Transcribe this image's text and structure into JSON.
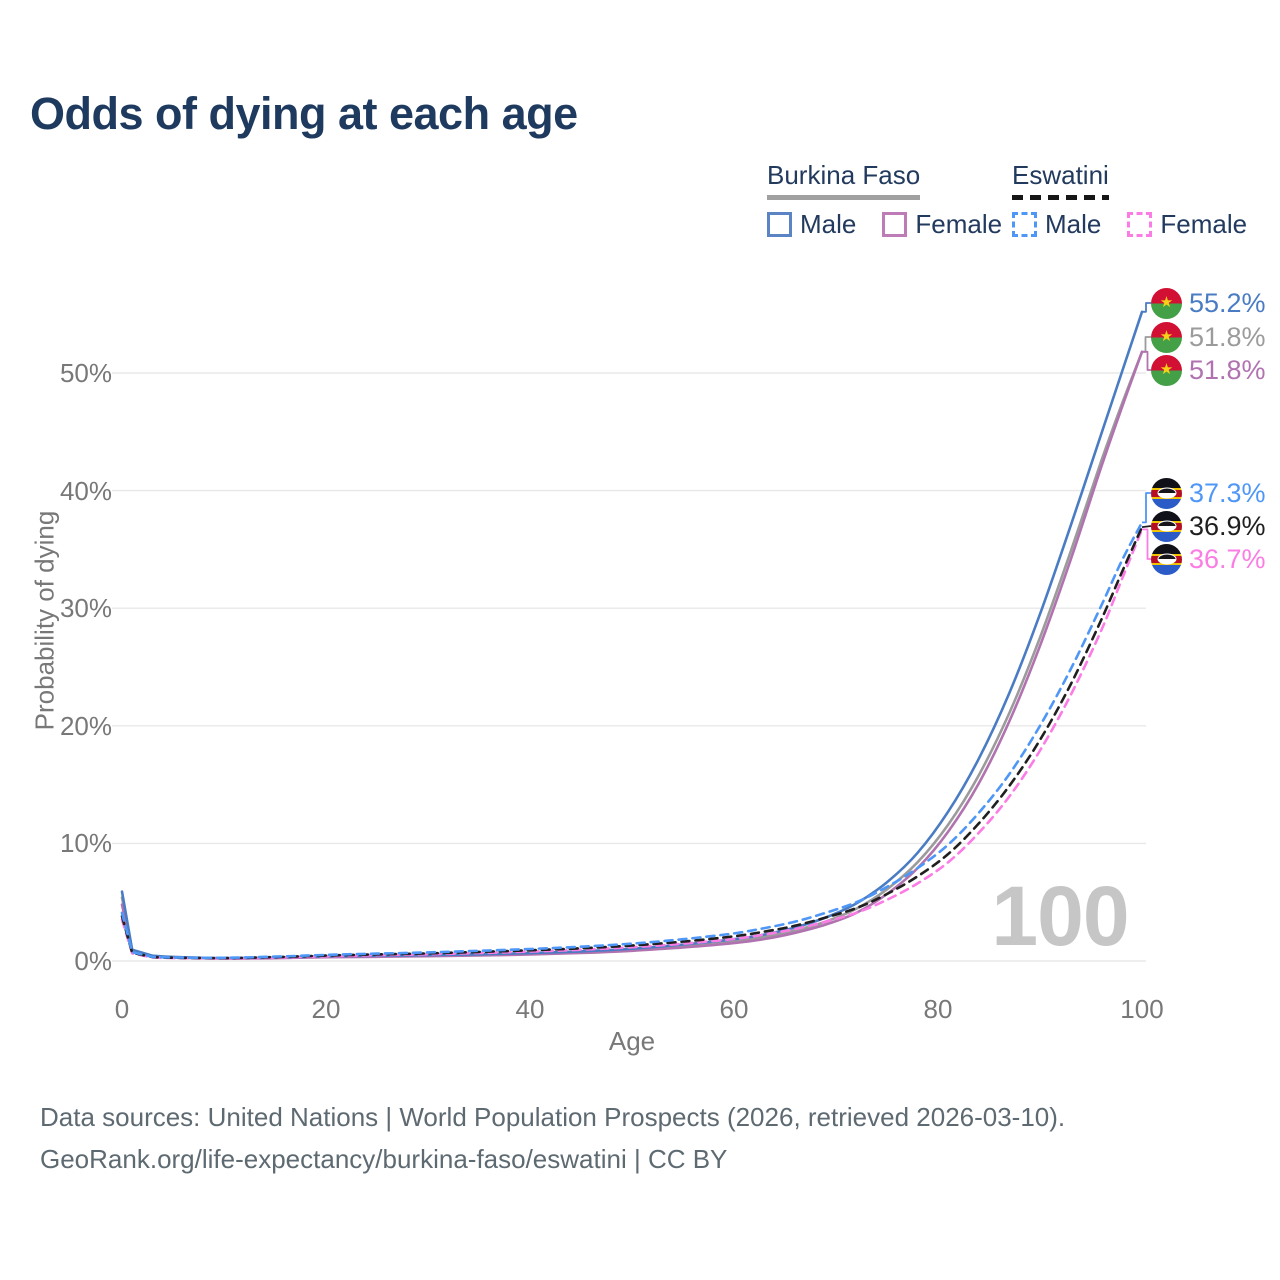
{
  "title": "Odds of dying at each age",
  "legend": {
    "groups": [
      {
        "name": "Burkina Faso",
        "line_style": "solid",
        "underline_color": "#a0a0a0",
        "items": [
          {
            "label": "Male",
            "color": "#5b84c4"
          },
          {
            "label": "Female",
            "color": "#bd7cb5"
          }
        ]
      },
      {
        "name": "Eswatini",
        "line_style": "dashed",
        "underline_color": "#161616",
        "items": [
          {
            "label": "Male",
            "color": "#4f97f7"
          },
          {
            "label": "Female",
            "color": "#fb7ce4"
          }
        ]
      }
    ]
  },
  "chart_data": {
    "type": "line",
    "title": "Odds of dying at each age",
    "xlabel": "Age",
    "ylabel": "Probability of dying",
    "x_ticks": [
      0,
      20,
      40,
      60,
      80,
      100
    ],
    "y_ticks": [
      "0%",
      "10%",
      "20%",
      "30%",
      "40%",
      "50%"
    ],
    "xlim": [
      0,
      100
    ],
    "ylim": [
      0,
      57
    ],
    "grid": "horizontal",
    "legend_position": "top-right",
    "watermark": "100",
    "series": [
      {
        "id": "bf-both",
        "country": "Burkina Faso",
        "sex": "Both",
        "style": "solid",
        "color": "#9b9b9b",
        "end_label": "51.8%",
        "flag": "burkina-faso",
        "points": [
          [
            0,
            5.4
          ],
          [
            1,
            0.88
          ],
          [
            3,
            0.42
          ],
          [
            5,
            0.32
          ],
          [
            10,
            0.23
          ],
          [
            15,
            0.27
          ],
          [
            20,
            0.36
          ],
          [
            25,
            0.41
          ],
          [
            30,
            0.46
          ],
          [
            35,
            0.52
          ],
          [
            40,
            0.61
          ],
          [
            45,
            0.75
          ],
          [
            50,
            0.95
          ],
          [
            55,
            1.27
          ],
          [
            60,
            1.68
          ],
          [
            63,
            2.05
          ],
          [
            66,
            2.6
          ],
          [
            69,
            3.35
          ],
          [
            72,
            4.45
          ],
          [
            75,
            6.1
          ],
          [
            78,
            8.4
          ],
          [
            81,
            11.6
          ],
          [
            84,
            15.8
          ],
          [
            87,
            21.1
          ],
          [
            90,
            27.5
          ],
          [
            93,
            34.8
          ],
          [
            96,
            42.5
          ],
          [
            98,
            47.3
          ],
          [
            100,
            51.8
          ]
        ]
      },
      {
        "id": "bf-female",
        "country": "Burkina Faso",
        "sex": "Female",
        "style": "solid",
        "color": "#b172b0",
        "end_label": "51.8%",
        "flag": "burkina-faso",
        "points": [
          [
            0,
            4.8
          ],
          [
            1,
            0.8
          ],
          [
            3,
            0.4
          ],
          [
            5,
            0.3
          ],
          [
            10,
            0.21
          ],
          [
            15,
            0.24
          ],
          [
            20,
            0.32
          ],
          [
            25,
            0.36
          ],
          [
            30,
            0.41
          ],
          [
            35,
            0.47
          ],
          [
            40,
            0.55
          ],
          [
            45,
            0.68
          ],
          [
            50,
            0.87
          ],
          [
            55,
            1.15
          ],
          [
            60,
            1.52
          ],
          [
            63,
            1.87
          ],
          [
            66,
            2.4
          ],
          [
            69,
            3.1
          ],
          [
            72,
            4.1
          ],
          [
            75,
            5.7
          ],
          [
            78,
            7.9
          ],
          [
            81,
            11.0
          ],
          [
            84,
            15.1
          ],
          [
            87,
            20.4
          ],
          [
            90,
            26.8
          ],
          [
            93,
            34.1
          ],
          [
            96,
            42.0
          ],
          [
            98,
            47.0
          ],
          [
            100,
            51.8
          ]
        ]
      },
      {
        "id": "bf-male",
        "country": "Burkina Faso",
        "sex": "Male",
        "style": "solid",
        "color": "#4a7cc4",
        "end_label": "55.2%",
        "flag": "burkina-faso",
        "points": [
          [
            0,
            5.9
          ],
          [
            1,
            0.95
          ],
          [
            3,
            0.45
          ],
          [
            5,
            0.35
          ],
          [
            10,
            0.25
          ],
          [
            15,
            0.3
          ],
          [
            20,
            0.4
          ],
          [
            25,
            0.45
          ],
          [
            30,
            0.5
          ],
          [
            35,
            0.57
          ],
          [
            40,
            0.67
          ],
          [
            45,
            0.82
          ],
          [
            50,
            1.05
          ],
          [
            55,
            1.4
          ],
          [
            60,
            1.85
          ],
          [
            63,
            2.25
          ],
          [
            66,
            2.85
          ],
          [
            69,
            3.7
          ],
          [
            72,
            4.9
          ],
          [
            75,
            6.7
          ],
          [
            78,
            9.2
          ],
          [
            81,
            12.7
          ],
          [
            84,
            17.2
          ],
          [
            87,
            22.8
          ],
          [
            90,
            29.5
          ],
          [
            93,
            37.0
          ],
          [
            96,
            44.8
          ],
          [
            98,
            50.0
          ],
          [
            100,
            55.2
          ]
        ]
      },
      {
        "id": "sz-female",
        "country": "Eswatini",
        "sex": "Female",
        "style": "dashed",
        "color": "#fb7ce4",
        "end_label": "36.7%",
        "flag": "eswatini",
        "points": [
          [
            0,
            3.5
          ],
          [
            1,
            0.65
          ],
          [
            3,
            0.3
          ],
          [
            5,
            0.25
          ],
          [
            10,
            0.22
          ],
          [
            15,
            0.29
          ],
          [
            20,
            0.4
          ],
          [
            25,
            0.49
          ],
          [
            30,
            0.57
          ],
          [
            35,
            0.68
          ],
          [
            40,
            0.8
          ],
          [
            45,
            0.96
          ],
          [
            50,
            1.17
          ],
          [
            55,
            1.47
          ],
          [
            60,
            1.87
          ],
          [
            63,
            2.25
          ],
          [
            66,
            2.72
          ],
          [
            69,
            3.35
          ],
          [
            72,
            4.1
          ],
          [
            75,
            5.2
          ],
          [
            78,
            6.6
          ],
          [
            81,
            8.4
          ],
          [
            84,
            10.9
          ],
          [
            87,
            14.0
          ],
          [
            90,
            17.9
          ],
          [
            93,
            22.6
          ],
          [
            96,
            28.1
          ],
          [
            98,
            32.4
          ],
          [
            100,
            36.7
          ]
        ]
      },
      {
        "id": "sz-both",
        "country": "Eswatini",
        "sex": "Both",
        "style": "dashed",
        "color": "#1f1f1f",
        "end_label": "36.9%",
        "flag": "eswatini",
        "points": [
          [
            0,
            3.8
          ],
          [
            1,
            0.7
          ],
          [
            3,
            0.33
          ],
          [
            5,
            0.28
          ],
          [
            10,
            0.25
          ],
          [
            15,
            0.33
          ],
          [
            20,
            0.46
          ],
          [
            25,
            0.56
          ],
          [
            30,
            0.65
          ],
          [
            35,
            0.77
          ],
          [
            40,
            0.91
          ],
          [
            45,
            1.08
          ],
          [
            50,
            1.32
          ],
          [
            55,
            1.65
          ],
          [
            60,
            2.1
          ],
          [
            63,
            2.5
          ],
          [
            66,
            3.0
          ],
          [
            69,
            3.7
          ],
          [
            72,
            4.5
          ],
          [
            75,
            5.7
          ],
          [
            78,
            7.2
          ],
          [
            81,
            9.1
          ],
          [
            84,
            11.7
          ],
          [
            87,
            14.9
          ],
          [
            90,
            18.8
          ],
          [
            93,
            23.5
          ],
          [
            96,
            29.0
          ],
          [
            98,
            33.0
          ],
          [
            100,
            36.9
          ]
        ]
      },
      {
        "id": "sz-male",
        "country": "Eswatini",
        "sex": "Male",
        "style": "dashed",
        "color": "#4f97f7",
        "end_label": "37.3%",
        "flag": "eswatini",
        "points": [
          [
            0,
            4.1
          ],
          [
            1,
            0.75
          ],
          [
            3,
            0.35
          ],
          [
            5,
            0.3
          ],
          [
            10,
            0.27
          ],
          [
            15,
            0.37
          ],
          [
            20,
            0.52
          ],
          [
            25,
            0.63
          ],
          [
            30,
            0.73
          ],
          [
            35,
            0.87
          ],
          [
            40,
            1.02
          ],
          [
            45,
            1.22
          ],
          [
            50,
            1.48
          ],
          [
            55,
            1.85
          ],
          [
            60,
            2.35
          ],
          [
            63,
            2.8
          ],
          [
            66,
            3.35
          ],
          [
            69,
            4.1
          ],
          [
            72,
            5.0
          ],
          [
            75,
            6.3
          ],
          [
            78,
            7.9
          ],
          [
            81,
            9.9
          ],
          [
            84,
            12.6
          ],
          [
            87,
            15.9
          ],
          [
            90,
            20.0
          ],
          [
            93,
            24.8
          ],
          [
            96,
            30.2
          ],
          [
            98,
            34.0
          ],
          [
            100,
            37.3
          ]
        ]
      }
    ]
  },
  "footer": {
    "line1": "Data sources: United Nations | World Population Prospects (2026, retrieved 2026-03-10).",
    "line2": "GeoRank.org/life-expectancy/burkina-faso/eswatini | CC BY"
  }
}
